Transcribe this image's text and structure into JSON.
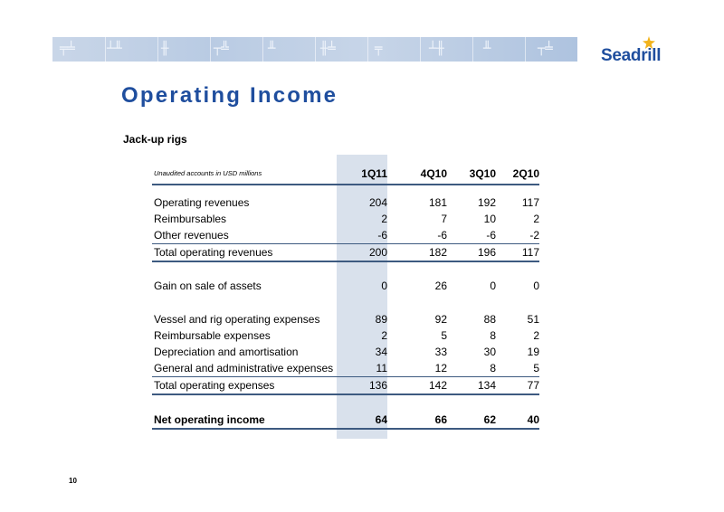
{
  "header": {
    "brand": "Seadrill",
    "title": "Operating Income",
    "subtitle": "Jack-up rigs"
  },
  "table": {
    "note": "Unaudited accounts in USD millions",
    "columns": [
      "1Q11",
      "4Q10",
      "3Q10",
      "2Q10"
    ],
    "rows": [
      {
        "label": "Operating revenues",
        "values": [
          "204",
          "181",
          "192",
          "117"
        ]
      },
      {
        "label": "Reimbursables",
        "values": [
          "2",
          "7",
          "10",
          "2"
        ]
      },
      {
        "label": "Other revenues",
        "values": [
          "-6",
          "-6",
          "-6",
          "-2"
        ]
      },
      {
        "label": "Total operating revenues",
        "values": [
          "200",
          "182",
          "196",
          "117"
        ]
      },
      {
        "label": "Gain on sale of assets",
        "values": [
          "0",
          "26",
          "0",
          "0"
        ]
      },
      {
        "label": "Vessel and rig operating expenses",
        "values": [
          "89",
          "92",
          "88",
          "51"
        ]
      },
      {
        "label": "Reimbursable expenses",
        "values": [
          "2",
          "5",
          "8",
          "2"
        ]
      },
      {
        "label": "Depreciation and amortisation",
        "values": [
          "34",
          "33",
          "30",
          "19"
        ]
      },
      {
        "label": "General and administrative expenses",
        "values": [
          "11",
          "12",
          "8",
          "5"
        ]
      },
      {
        "label": "Total operating expenses",
        "values": [
          "136",
          "142",
          "134",
          "77"
        ]
      },
      {
        "label": "Net operating income",
        "values": [
          "64",
          "66",
          "62",
          "40"
        ]
      }
    ]
  },
  "footer": {
    "page_number": "10"
  },
  "colors": {
    "brand_blue": "#1f4e9e",
    "highlight_column": "#d9e1ec",
    "rule": "#3d5a80"
  }
}
